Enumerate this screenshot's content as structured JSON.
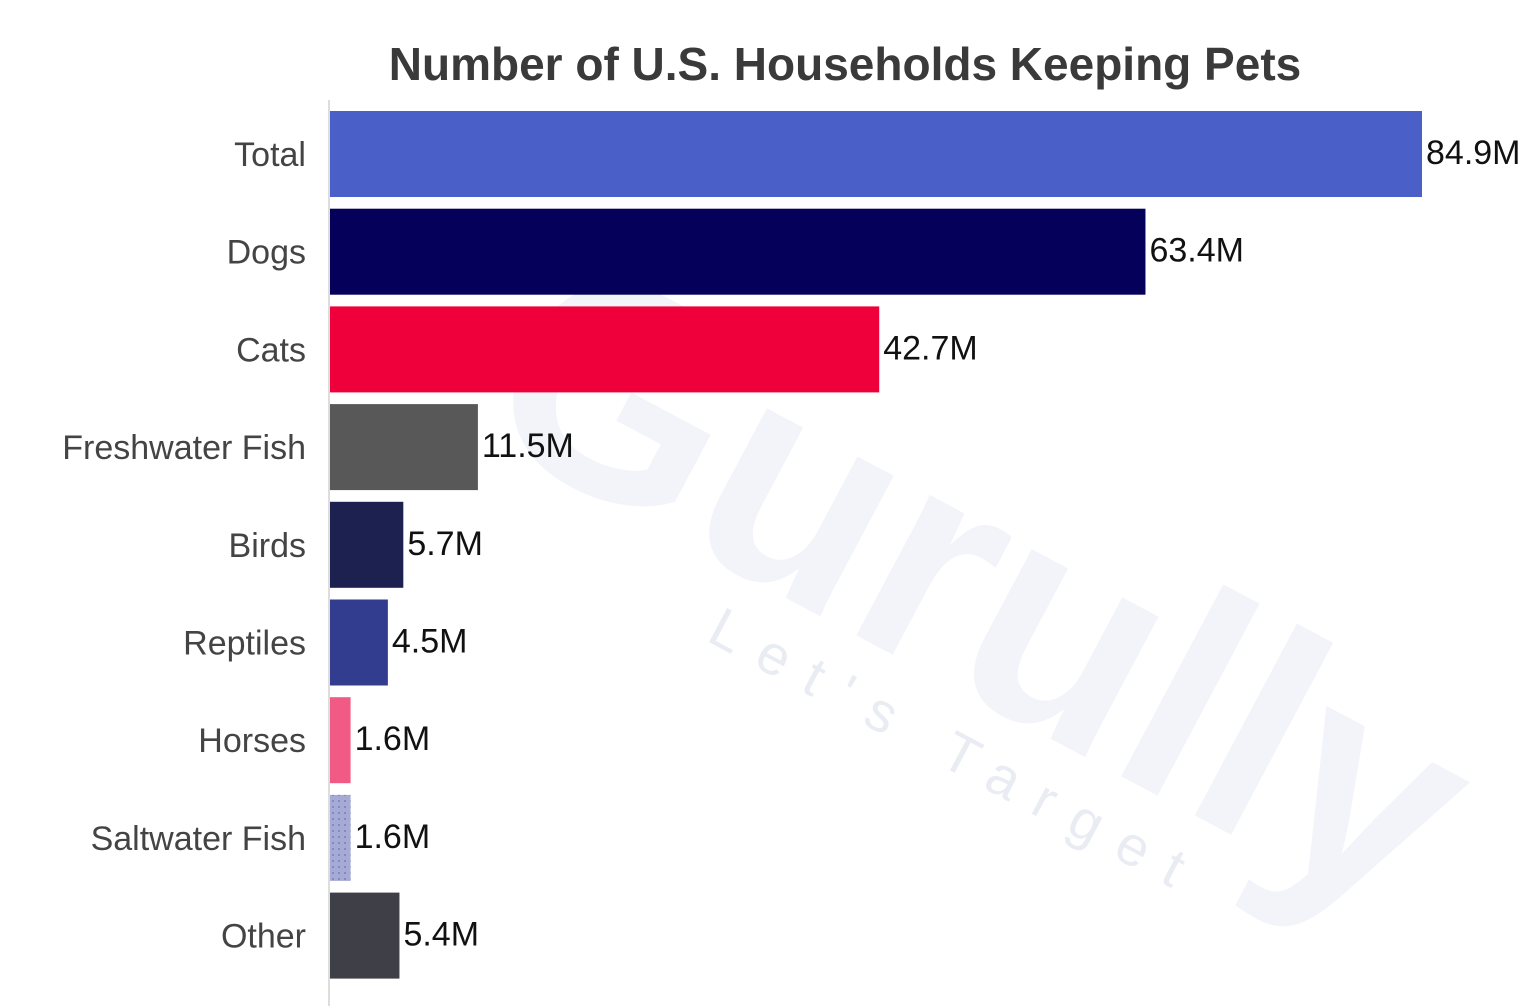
{
  "chart_data": {
    "type": "bar",
    "orientation": "horizontal",
    "title": "Number of U.S. Households Keeping Pets",
    "categories": [
      "Total",
      "Dogs",
      "Cats",
      "Freshwater Fish",
      "Birds",
      "Reptiles",
      "Horses",
      "Saltwater Fish",
      "Other"
    ],
    "values": [
      84.9,
      63.4,
      42.7,
      11.5,
      5.7,
      4.5,
      1.6,
      1.6,
      5.4
    ],
    "value_labels": [
      "84.9M",
      "63.4M",
      "42.7M",
      "11.5M",
      "5.7M",
      "4.5M",
      "1.6M",
      "1.6M",
      "5.4M"
    ],
    "colors": [
      "#4b5fc8",
      "#05005a",
      "#f0003b",
      "#585858",
      "#1c2150",
      "#333d8f",
      "#f05a85",
      "#a6abd6",
      "#3f3f47"
    ],
    "unit": "M",
    "xlabel": "",
    "ylabel": "",
    "xlim": [
      0,
      84.9
    ],
    "grid": false,
    "legend": "none"
  },
  "watermark": {
    "brand": "Gurully",
    "tagline": "Let's Target"
  }
}
